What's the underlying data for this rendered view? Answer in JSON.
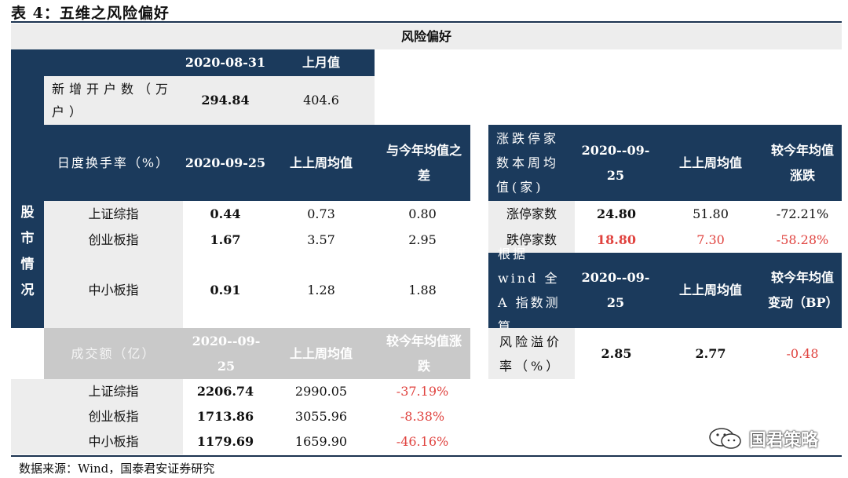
{
  "title": "表 4：五维之风险偏好",
  "header": "风险偏好",
  "side_label": [
    "股",
    "市",
    "情",
    "况"
  ],
  "accounts": {
    "date": "2020-08-31",
    "prev_label": "上月值",
    "row_label": "新增开户数（万户）",
    "value": "294.84",
    "prev": "404.6"
  },
  "turnover": {
    "header_label": "日度换手率（%）",
    "date": "2020-09-25",
    "col2": "上上周均值",
    "col3": "与今年均值之差",
    "rows": [
      {
        "name": "上证综指",
        "v1": "0.44",
        "v2": "0.73",
        "v3": "0.80"
      },
      {
        "name": "创业板指",
        "v1": "1.67",
        "v2": "3.57",
        "v3": "2.95"
      },
      {
        "name": "中小板指",
        "v1": "0.91",
        "v2": "1.28",
        "v3": "1.88"
      }
    ]
  },
  "volume": {
    "header_label": "成交额（亿）",
    "date": "2020--09-25",
    "col2": "上上周均值",
    "col3": "较今年均值涨跌",
    "rows": [
      {
        "name": "上证综指",
        "v1": "2206.74",
        "v2": "2990.05",
        "v3": "-37.19%"
      },
      {
        "name": "创业板指",
        "v1": "1713.86",
        "v2": "3055.96",
        "v3": "-8.38%"
      },
      {
        "name": "中小板指",
        "v1": "1179.69",
        "v2": "1659.90",
        "v3": "-46.16%"
      }
    ]
  },
  "limit": {
    "header_label": "涨跌停家数本周均值(家)",
    "date": "2020--09-25",
    "col2": "上上周均值",
    "col3": "较今年均值涨跌",
    "rows": [
      {
        "name": "涨停家数",
        "v1": "24.80",
        "v2": "51.80",
        "v3": "-72.21%"
      },
      {
        "name": "跌停家数",
        "v1": "18.80",
        "v2": "7.30",
        "v3": "-58.28%"
      }
    ]
  },
  "premium": {
    "header_label": "根据 wind 全 A 指数测算",
    "date": "2020--09-25",
    "col2": "上上周均值",
    "col3": "较今年均值变动（BP）",
    "row_label": "风险溢价率（%）",
    "v1": "2.85",
    "v2": "2.77",
    "v3": "-0.48"
  },
  "source": "数据来源：Wind，国泰君安证券研究",
  "watermark": "国君策略",
  "colors": {
    "navy": "#1b3a5c",
    "gray": "#ededed",
    "red": "#e0433f"
  }
}
